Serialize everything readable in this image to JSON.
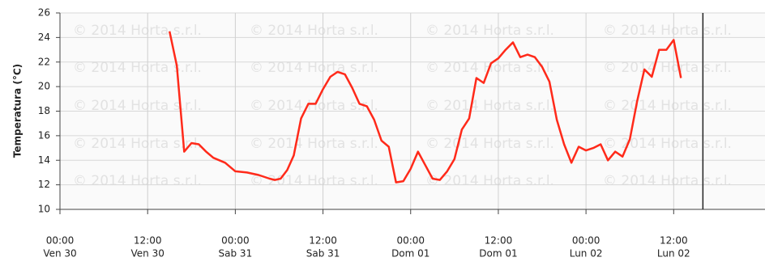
{
  "chart_data": {
    "type": "line",
    "y_label": "Temperatura (°C)",
    "watermark": "© 2014 Horta s.r.l.",
    "x": [
      15,
      16,
      17,
      18,
      19,
      20,
      21,
      22.6,
      24,
      25.6,
      27.2,
      28.7,
      29.4,
      30.2,
      31.1,
      32,
      33,
      34,
      35,
      36,
      37,
      38,
      39,
      40,
      41,
      42,
      43,
      44,
      45,
      46,
      47,
      48,
      49,
      50,
      51,
      52,
      53,
      54,
      55,
      56,
      57,
      58,
      59,
      60,
      61,
      62,
      63,
      64,
      65,
      66,
      67,
      68,
      69,
      70,
      71,
      72,
      73,
      74,
      75,
      76,
      77,
      78,
      79,
      80,
      81,
      82,
      83,
      84,
      85
    ],
    "series": [
      {
        "color": "#ff2a1a",
        "values": [
          24.5,
          21.7,
          14.7,
          15.4,
          15.3,
          14.7,
          14.2,
          13.8,
          13.1,
          13.0,
          12.8,
          12.5,
          12.4,
          12.5,
          13.2,
          14.4,
          17.4,
          18.6,
          18.6,
          19.8,
          20.8,
          21.2,
          21.0,
          19.9,
          18.6,
          18.4,
          17.3,
          15.6,
          15.1,
          12.2,
          12.3,
          13.3,
          14.7,
          13.6,
          12.5,
          12.4,
          13.1,
          14.1,
          16.5,
          17.4,
          20.7,
          20.3,
          21.9,
          22.3,
          23.0,
          23.6,
          22.4,
          22.6,
          22.4,
          21.6,
          20.4,
          17.3,
          15.3,
          13.8,
          15.1,
          14.8,
          15.0,
          15.3,
          14.0,
          14.7,
          14.3,
          15.7,
          18.8,
          21.4,
          20.8,
          23.0,
          23.0,
          23.8,
          20.7
        ]
      }
    ],
    "xlim": [
      0,
      96.5
    ],
    "xticks": [
      {
        "value": 0,
        "label": [
          "00:00",
          "Ven 30"
        ]
      },
      {
        "value": 12,
        "label": [
          "12:00",
          "Ven 30"
        ]
      },
      {
        "value": 24,
        "label": [
          "00:00",
          "Sab 31"
        ]
      },
      {
        "value": 36,
        "label": [
          "12:00",
          "Sab 31"
        ]
      },
      {
        "value": 48,
        "label": [
          "00:00",
          "Dom 01"
        ]
      },
      {
        "value": 60,
        "label": [
          "12:00",
          "Dom 01"
        ]
      },
      {
        "value": 72,
        "label": [
          "00:00",
          "Lun 02"
        ]
      },
      {
        "value": 84,
        "label": [
          "12:00",
          "Lun 02"
        ]
      }
    ],
    "now_x": 88,
    "ylim": [
      10,
      26
    ],
    "yticks": [
      10,
      12,
      14,
      16,
      18,
      20,
      22,
      24,
      26
    ],
    "grid": true
  }
}
